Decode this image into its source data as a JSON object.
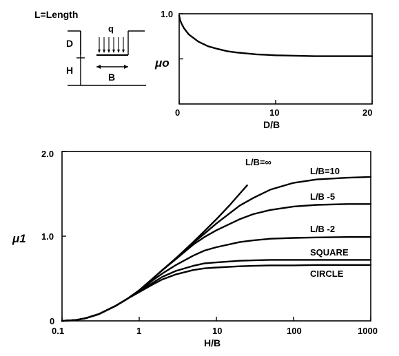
{
  "chart_data": [
    {
      "type": "line",
      "title": "",
      "xlabel": "D/B",
      "ylabel": "μo",
      "xlim": [
        0,
        20
      ],
      "ylim": [
        0.0,
        1.0
      ],
      "xticks": [
        "0",
        "10",
        "20"
      ],
      "yticks": [
        "",
        "",
        "1.0"
      ],
      "grid": false,
      "series": [
        {
          "x": [
            0,
            0.1,
            0.25,
            0.5,
            1,
            2,
            3,
            4,
            5,
            6,
            8,
            10,
            12,
            14,
            16,
            18,
            20
          ],
          "y": [
            0.98,
            0.93,
            0.89,
            0.84,
            0.77,
            0.69,
            0.64,
            0.61,
            0.585,
            0.57,
            0.55,
            0.54,
            0.535,
            0.53,
            0.53,
            0.53,
            0.53
          ]
        }
      ]
    },
    {
      "type": "line",
      "title": "",
      "xlabel": "H/B",
      "ylabel": "μ1",
      "xscale": "log",
      "xlim": [
        0.1,
        1000
      ],
      "ylim": [
        0,
        2.0
      ],
      "xticks": [
        "0.1",
        "1",
        "10",
        "100",
        "1000"
      ],
      "yticks": [
        "0",
        "1.0",
        "2.0"
      ],
      "grid": false,
      "series": [
        {
          "name": "L/B=∞",
          "x": [
            0.1,
            0.15,
            0.2,
            0.3,
            0.5,
            0.7,
            1,
            1.5,
            2,
            3,
            5,
            7,
            10,
            15,
            20,
            25
          ],
          "y": [
            0,
            0.01,
            0.03,
            0.08,
            0.18,
            0.26,
            0.36,
            0.5,
            0.6,
            0.74,
            0.93,
            1.06,
            1.2,
            1.37,
            1.5,
            1.6
          ]
        },
        {
          "name": "L/B=10",
          "x": [
            0.1,
            0.15,
            0.2,
            0.3,
            0.5,
            0.7,
            1,
            1.5,
            2,
            3,
            5,
            7,
            10,
            20,
            30,
            50,
            100,
            200,
            500,
            1000
          ],
          "y": [
            0,
            0.01,
            0.03,
            0.08,
            0.18,
            0.26,
            0.36,
            0.5,
            0.6,
            0.74,
            0.92,
            1.03,
            1.15,
            1.36,
            1.45,
            1.55,
            1.63,
            1.67,
            1.69,
            1.7
          ]
        },
        {
          "name": "L/B -5",
          "x": [
            0.1,
            0.15,
            0.2,
            0.3,
            0.5,
            0.7,
            1,
            1.5,
            2,
            3,
            5,
            7,
            10,
            20,
            30,
            50,
            100,
            200,
            500,
            1000
          ],
          "y": [
            0,
            0.01,
            0.03,
            0.08,
            0.18,
            0.26,
            0.36,
            0.5,
            0.6,
            0.73,
            0.9,
            0.99,
            1.07,
            1.2,
            1.26,
            1.31,
            1.35,
            1.37,
            1.38,
            1.38
          ]
        },
        {
          "name": "L/B -2",
          "x": [
            0.1,
            0.15,
            0.2,
            0.3,
            0.5,
            0.7,
            1,
            1.5,
            2,
            3,
            5,
            7,
            10,
            20,
            30,
            50,
            100,
            200,
            500,
            1000
          ],
          "y": [
            0,
            0.01,
            0.03,
            0.08,
            0.18,
            0.26,
            0.36,
            0.48,
            0.56,
            0.66,
            0.77,
            0.83,
            0.87,
            0.93,
            0.95,
            0.97,
            0.98,
            0.985,
            0.99,
            0.99
          ]
        },
        {
          "name": "SQUARE",
          "x": [
            0.1,
            0.15,
            0.2,
            0.3,
            0.5,
            0.7,
            1,
            1.5,
            2,
            3,
            5,
            7,
            10,
            20,
            30,
            50,
            100,
            200,
            500,
            1000
          ],
          "y": [
            0,
            0.01,
            0.03,
            0.08,
            0.18,
            0.26,
            0.35,
            0.45,
            0.52,
            0.59,
            0.65,
            0.68,
            0.69,
            0.71,
            0.715,
            0.72,
            0.72,
            0.72,
            0.72,
            0.72
          ]
        },
        {
          "name": "CIRCLE",
          "x": [
            0.1,
            0.15,
            0.2,
            0.3,
            0.5,
            0.7,
            1,
            1.5,
            2,
            3,
            5,
            7,
            10,
            20,
            30,
            50,
            100,
            200,
            500,
            1000
          ],
          "y": [
            0,
            0.01,
            0.03,
            0.08,
            0.18,
            0.26,
            0.34,
            0.43,
            0.49,
            0.55,
            0.6,
            0.62,
            0.63,
            0.645,
            0.65,
            0.655,
            0.655,
            0.66,
            0.66,
            0.66
          ]
        }
      ]
    }
  ],
  "diagram": {
    "title": "L=Length",
    "load_label": "q",
    "depth_label": "D",
    "layer_label": "H",
    "width_label": "B"
  }
}
